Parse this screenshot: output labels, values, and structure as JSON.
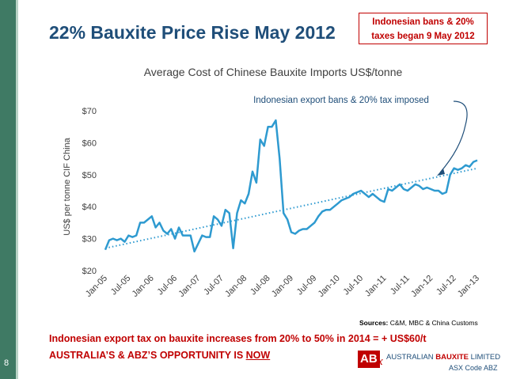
{
  "slide": {
    "title": "22% Bauxite Price Rise May 2012",
    "callout_line1": "Indonesian bans & 20%",
    "callout_line2": "taxes began 9 May 2012",
    "page_number": "8",
    "sources_label": "Sources:",
    "sources_text": " C&M, MBC & China Customs",
    "bottom_line1": "Indonesian export tax on bauxite increases from 20% to 50% in 2014 = + US$60/t",
    "bottom_line2_prefix": "AUSTRALIA’S & ABZ’S OPPORTUNITY IS ",
    "bottom_line2_emph": "NOW",
    "logo_text": "AB",
    "logo_x": "x",
    "company_prefix": "AUSTRALIAN ",
    "company_bold": "BAUXITE",
    "company_suffix": " LIMITED",
    "asx_code": "ASX Code ABZ"
  },
  "colors": {
    "primary": "#1f4e79",
    "accent": "#c00000",
    "series": "#2e9ad0",
    "sidebar": "#3f7a64"
  },
  "chart_data": {
    "type": "line",
    "title": "Average Cost of Chinese Bauxite Imports US$/tonne",
    "ylabel": "US$ per tonne CIF China",
    "xlabel": "",
    "ylim": [
      20,
      70
    ],
    "ytick_labels": [
      "$20",
      "$30",
      "$40",
      "$50",
      "$60",
      "$70"
    ],
    "yticks": [
      20,
      30,
      40,
      50,
      60,
      70
    ],
    "xtick_labels": [
      "Jan-05",
      "Jul-05",
      "Jan-06",
      "Jul-06",
      "Jan-07",
      "Jul-07",
      "Jan-08",
      "Jul-08",
      "Jan-09",
      "Jul-09",
      "Jan-10",
      "Jul-10",
      "Jan-11",
      "Jul-11",
      "Jan-12",
      "Jul-12",
      "Jan-13"
    ],
    "x_range": [
      "2005-01",
      "2013-03"
    ],
    "grid": false,
    "annotation": "Indonesian export bans & 20% tax imposed",
    "series": [
      {
        "values": [
          26.5,
          29.5,
          30.0,
          29.5,
          30.0,
          29.0,
          31.0,
          30.5,
          31.0,
          35.0,
          35.0,
          36.0,
          37.0,
          33.5,
          35.0,
          32.5,
          31.5,
          33.0,
          30.0,
          33.5,
          31.0,
          31.0,
          31.0,
          26.0,
          28.5,
          31.0,
          30.5,
          30.5,
          37.0,
          36.0,
          34.0,
          39.0,
          38.0,
          27.0,
          38.0,
          42.0,
          41.0,
          44.0,
          51.0,
          47.5,
          61.0,
          59.0,
          65.0,
          65.0,
          67.0,
          55.0,
          38.0,
          36.0,
          32.0,
          31.5,
          32.5,
          33.0,
          33.0,
          34.0,
          35.0,
          37.0,
          38.5,
          39.0,
          39.0,
          40.0,
          41.0,
          42.0,
          42.5,
          43.0,
          44.0,
          44.5,
          45.0,
          44.0,
          43.0,
          44.0,
          43.0,
          42.0,
          41.5,
          45.5,
          45.0,
          46.0,
          47.0,
          45.5,
          45.0,
          46.0,
          47.0,
          46.5,
          45.5,
          46.0,
          45.5,
          45.0,
          45.0,
          44.0,
          44.5,
          50.0,
          52.0,
          51.5,
          52.0,
          53.0,
          52.5,
          54.0,
          54.5
        ]
      },
      {
        "type": "trend",
        "values_linear": [
          27.0,
          52.0
        ],
        "style": "dotted"
      }
    ]
  }
}
